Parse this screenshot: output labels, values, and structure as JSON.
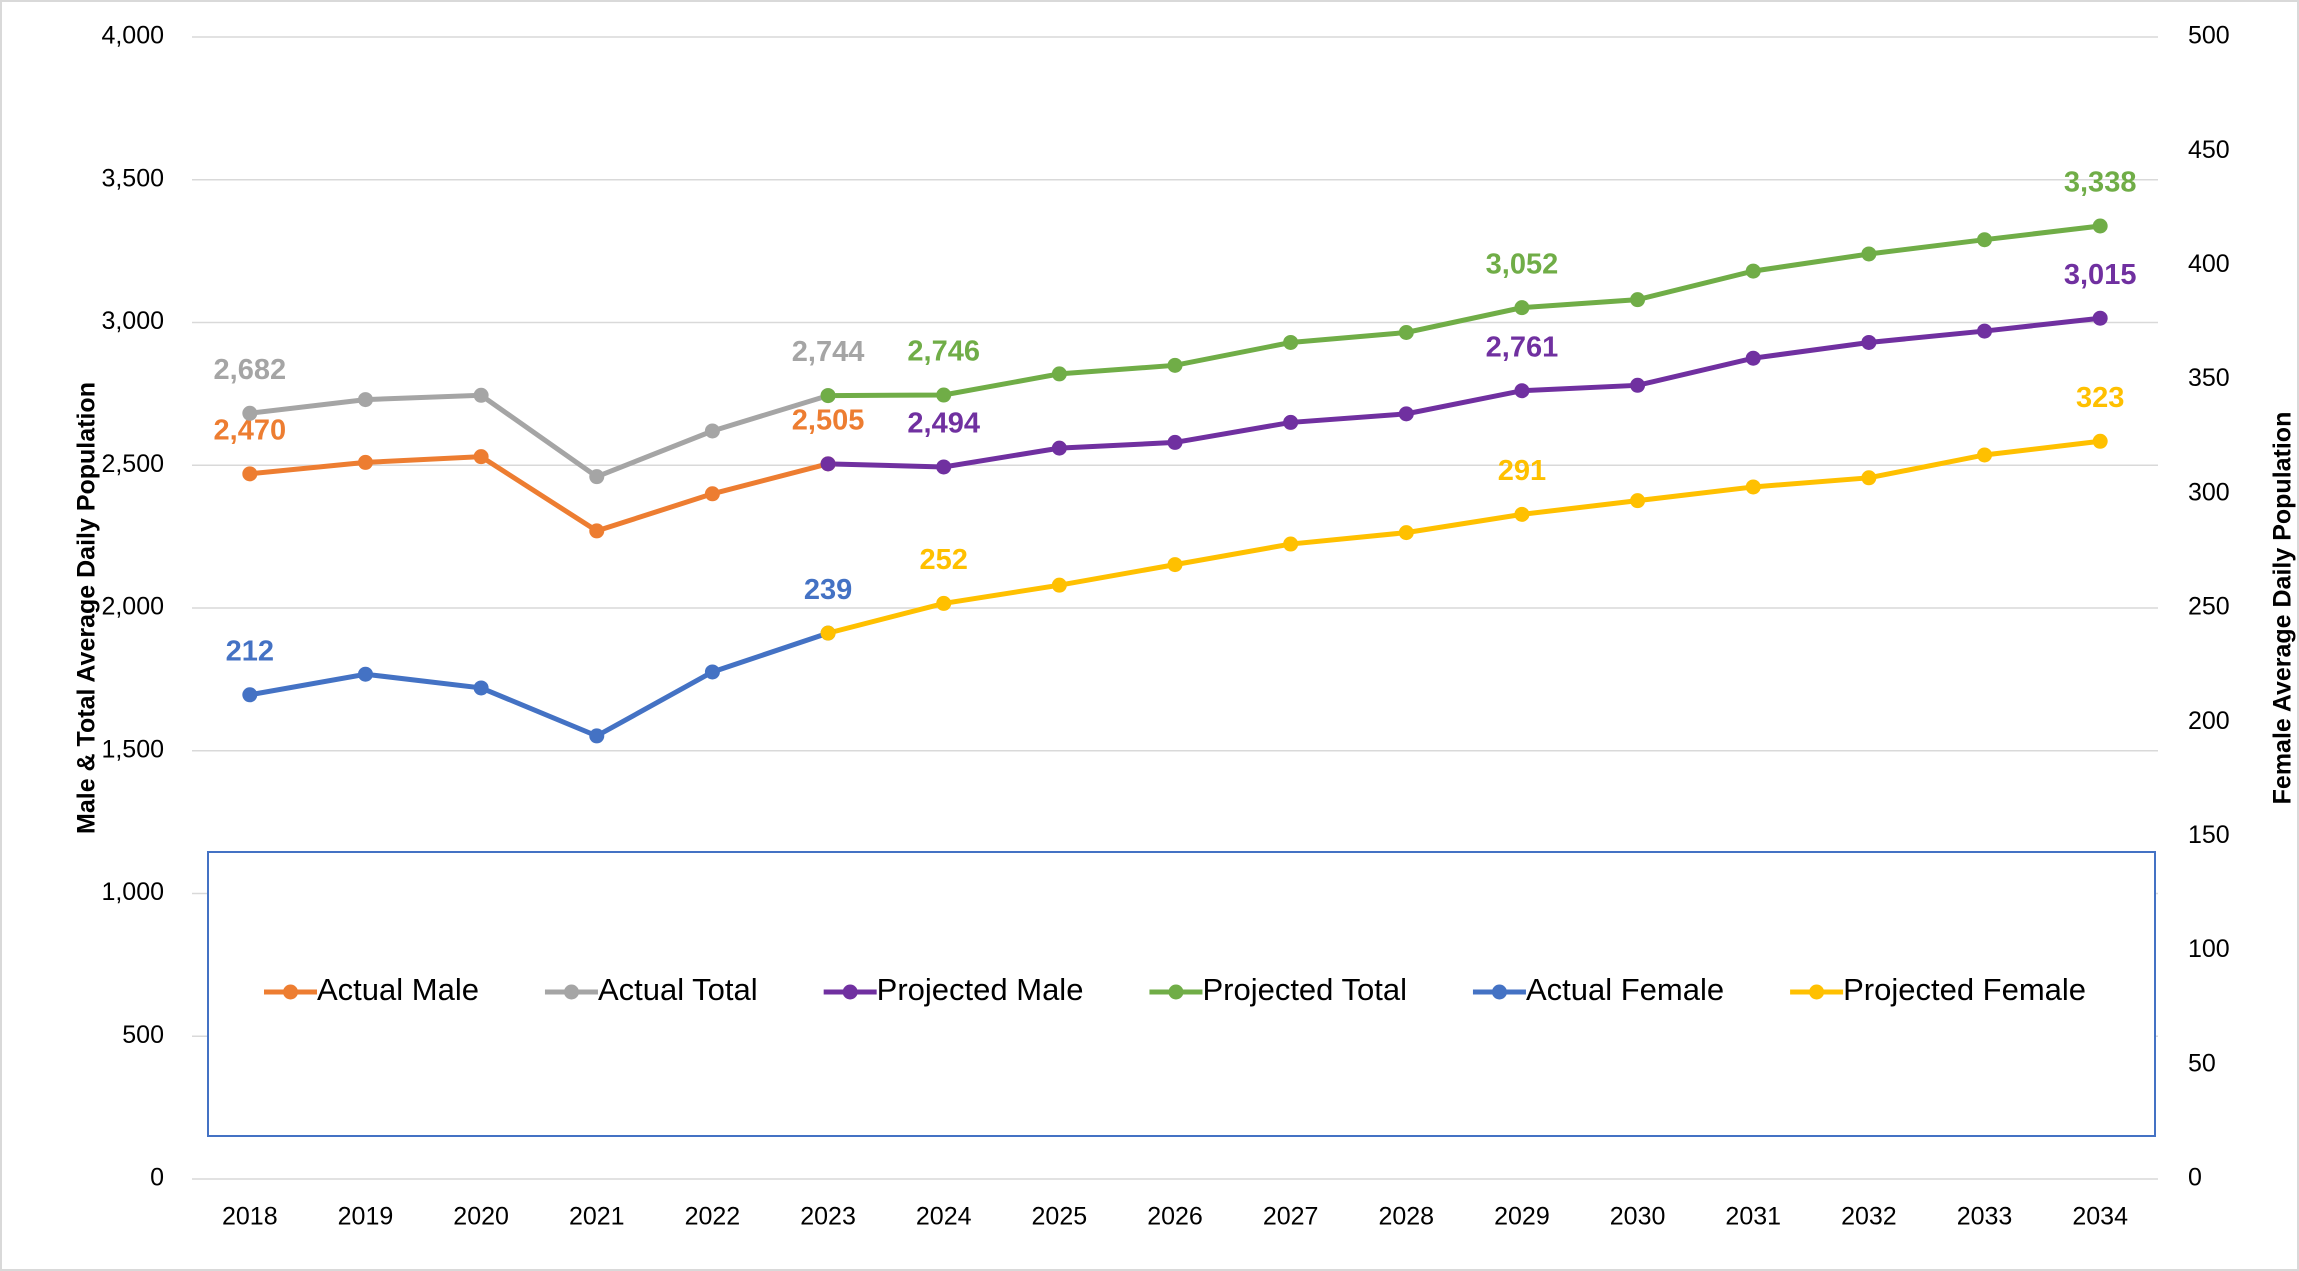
{
  "chart_data": {
    "type": "line",
    "categories": [
      "2018",
      "2019",
      "2020",
      "2021",
      "2022",
      "2023",
      "2024",
      "2025",
      "2026",
      "2027",
      "2028",
      "2029",
      "2030",
      "2031",
      "2032",
      "2033",
      "2034"
    ],
    "ylabel": "Male & Total Average Daily Population",
    "y2label": "Female Average Daily Population",
    "ylim": [
      0,
      4000
    ],
    "yticks": [
      0,
      {
        "value": 500,
        "label": "500"
      },
      {
        "value": 1000,
        "label": "1,000"
      },
      {
        "value": 1500,
        "label": "1,500"
      },
      {
        "value": 2000,
        "label": "2,000"
      },
      {
        "value": 2500,
        "label": "2,500"
      },
      {
        "value": 3000,
        "label": "3,000"
      },
      {
        "value": 3500,
        "label": "3,500"
      },
      {
        "value": 4000,
        "label": "4,000"
      }
    ],
    "y2lim": [
      0,
      500
    ],
    "y2ticks": [
      0,
      50,
      100,
      150,
      200,
      250,
      300,
      350,
      400,
      450,
      500
    ],
    "grid": true,
    "legend": "bottom",
    "series": [
      {
        "name": "Actual Male",
        "color": "#ED7D31",
        "values": [
          2470,
          2510,
          2530,
          2270,
          2400,
          2505,
          null,
          null,
          null,
          null,
          null,
          null,
          null,
          null,
          null,
          null,
          null
        ],
        "value_labels": [
          "2,470",
          null,
          null,
          null,
          null,
          "2,505",
          null,
          null,
          null,
          null,
          null,
          null,
          null,
          null,
          null,
          null,
          null
        ]
      },
      {
        "name": "Actual Total",
        "color": "#A5A5A5",
        "values": [
          2682,
          2730,
          2745,
          2460,
          2620,
          2744,
          null,
          null,
          null,
          null,
          null,
          null,
          null,
          null,
          null,
          null,
          null
        ],
        "value_labels": [
          "2,682",
          null,
          null,
          null,
          null,
          "2,744",
          null,
          null,
          null,
          null,
          null,
          null,
          null,
          null,
          null,
          null,
          null
        ]
      },
      {
        "name": "Projected Male",
        "color": "#7030A0",
        "values": [
          null,
          null,
          null,
          null,
          null,
          2505,
          2494,
          2560,
          2580,
          2650,
          2680,
          2761,
          2780,
          2875,
          2930,
          2970,
          3015
        ],
        "value_labels": [
          null,
          null,
          null,
          null,
          null,
          null,
          "2,494",
          null,
          null,
          null,
          null,
          "2,761",
          null,
          null,
          null,
          null,
          "3,015"
        ]
      },
      {
        "name": "Projected Total",
        "color": "#70AD47",
        "values": [
          null,
          null,
          null,
          null,
          null,
          2744,
          2746,
          2820,
          2850,
          2930,
          2965,
          3052,
          3080,
          3180,
          3240,
          3290,
          3338
        ],
        "value_labels": [
          null,
          null,
          null,
          null,
          null,
          null,
          "2,746",
          null,
          null,
          null,
          null,
          "3,052",
          null,
          null,
          null,
          null,
          "3,338"
        ]
      },
      {
        "name": "Actual Female",
        "color": "#4472C4",
        "axis": "y2",
        "values": [
          212,
          221,
          215,
          194,
          222,
          239,
          null,
          null,
          null,
          null,
          null,
          null,
          null,
          null,
          null,
          null,
          null
        ],
        "value_labels": [
          "212",
          null,
          null,
          null,
          null,
          "239",
          null,
          null,
          null,
          null,
          null,
          null,
          null,
          null,
          null,
          null,
          null
        ]
      },
      {
        "name": "Projected Female",
        "color": "#FFC000",
        "axis": "y2",
        "values": [
          null,
          null,
          null,
          null,
          null,
          239,
          252,
          260,
          269,
          278,
          283,
          291,
          297,
          303,
          307,
          317,
          323
        ],
        "value_labels": [
          null,
          null,
          null,
          null,
          null,
          null,
          "252",
          null,
          null,
          null,
          null,
          "291",
          null,
          null,
          null,
          null,
          "323"
        ]
      }
    ]
  }
}
